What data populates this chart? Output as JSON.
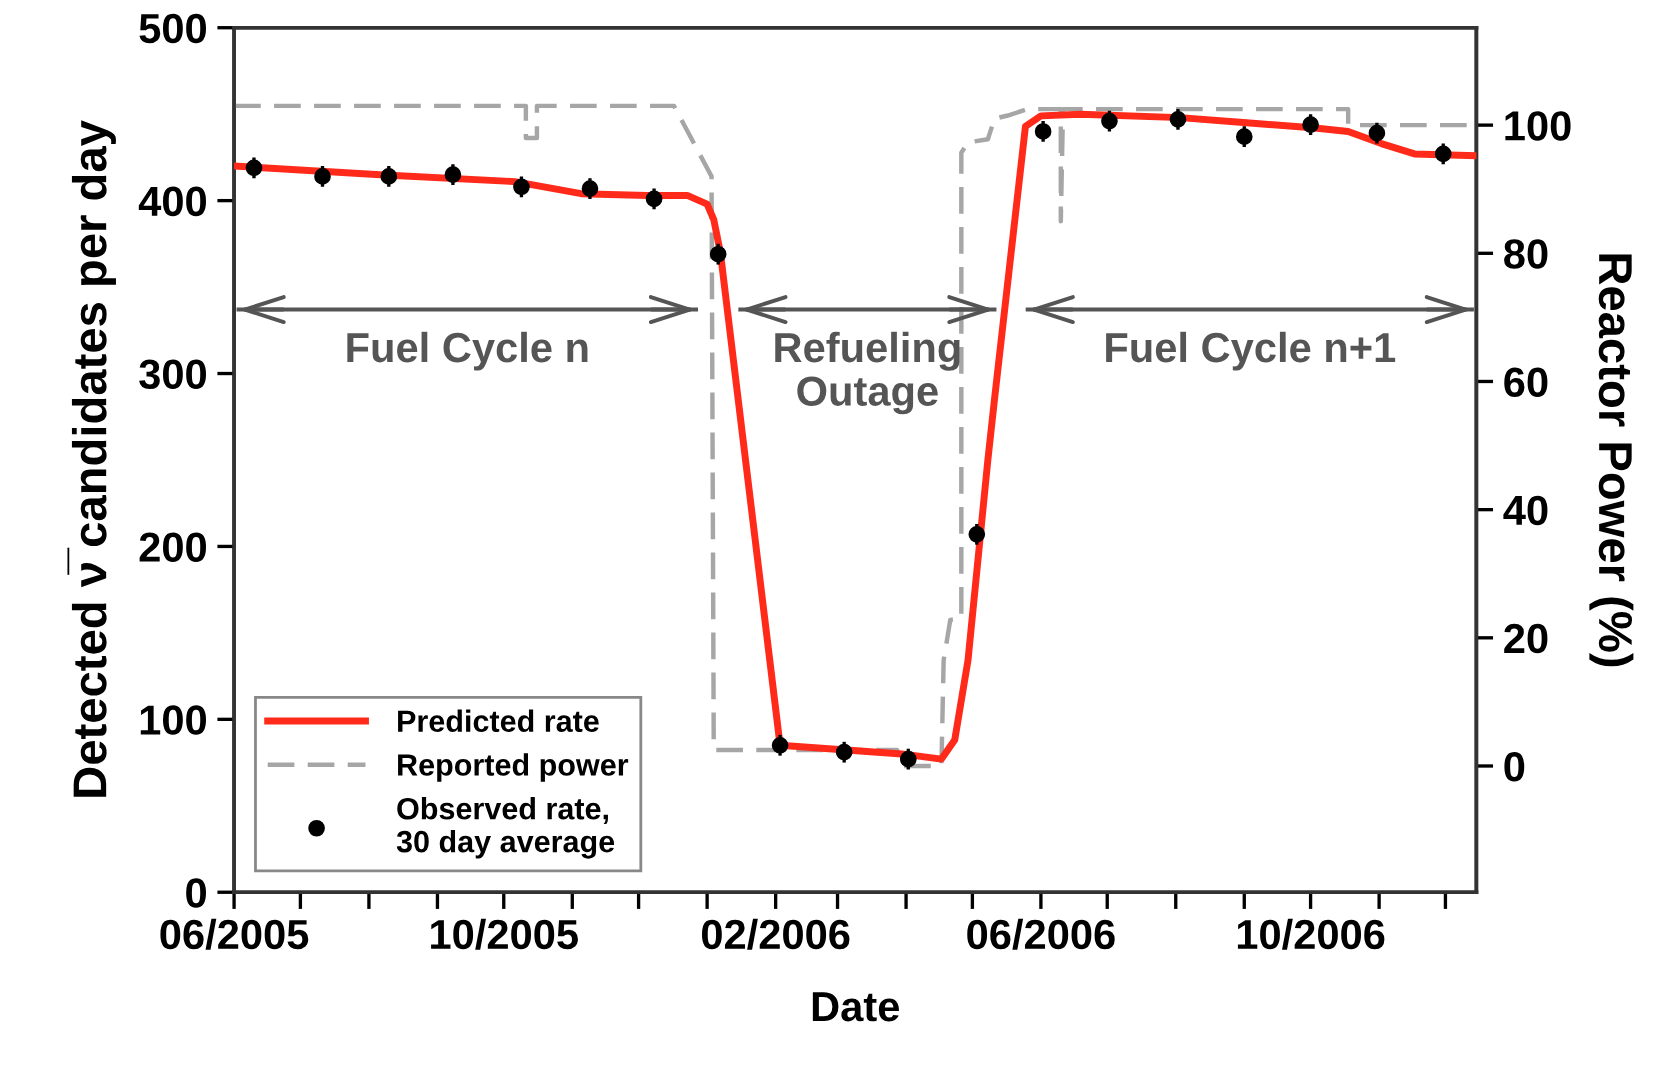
{
  "chart_data": {
    "type": "line",
    "xlabel": "Date",
    "ylabel": "Detected ν̅ candidates per day",
    "y2label": "Reactor Power (%)",
    "xlim": [
      "2005-06-01",
      "2006-12-15"
    ],
    "xticks": [
      {
        "value": "2005-06-01",
        "label": "06/2005"
      },
      {
        "value": "2005-07-01",
        "label": null
      },
      {
        "value": "2005-08-01",
        "label": null
      },
      {
        "value": "2005-09-01",
        "label": null
      },
      {
        "value": "2005-10-01",
        "label": "10/2005"
      },
      {
        "value": "2005-11-01",
        "label": null
      },
      {
        "value": "2005-12-01",
        "label": null
      },
      {
        "value": "2006-01-01",
        "label": null
      },
      {
        "value": "2006-02-01",
        "label": "02/2006"
      },
      {
        "value": "2006-03-01",
        "label": null
      },
      {
        "value": "2006-04-01",
        "label": null
      },
      {
        "value": "2006-05-01",
        "label": null
      },
      {
        "value": "2006-06-01",
        "label": "06/2006"
      },
      {
        "value": "2006-07-01",
        "label": null
      },
      {
        "value": "2006-08-01",
        "label": null
      },
      {
        "value": "2006-09-01",
        "label": null
      },
      {
        "value": "2006-10-01",
        "label": "10/2006"
      },
      {
        "value": "2006-11-01",
        "label": null
      },
      {
        "value": "2006-12-01",
        "label": null
      }
    ],
    "ylim": [
      0,
      500
    ],
    "yticks": [
      0,
      100,
      200,
      300,
      400,
      500
    ],
    "y2lim": [
      -19.7,
      115.2
    ],
    "y2ticks": [
      0,
      20,
      40,
      60,
      80,
      100
    ],
    "legend": "bottom left",
    "series": [
      {
        "name": "Reported power",
        "axis": "y2",
        "color": "#a6a6a6",
        "line_style": "dashed",
        "x": [
          "2005-06-01",
          "2005-10-11",
          "2005-10-11",
          "2005-10-16",
          "2005-10-16",
          "2005-12-17",
          "2006-01-03",
          "2006-01-04",
          "2006-03-28",
          "2006-03-30",
          "2006-04-17",
          "2006-04-18",
          "2006-04-21",
          "2006-04-26",
          "2006-04-26",
          "2006-04-29",
          "2006-05-08",
          "2006-05-11",
          "2006-05-17",
          "2006-05-26",
          "2006-06-10",
          "2006-06-10",
          "2006-06-11",
          "2006-10-18",
          "2006-10-18",
          "2006-12-15"
        ],
        "values": [
          103,
          103,
          98,
          98,
          103,
          103,
          92,
          2.5,
          2.5,
          0,
          0,
          16.5,
          22.8,
          23,
          95.7,
          97.3,
          97.8,
          101,
          101.5,
          102.5,
          102.5,
          85,
          102.5,
          102.5,
          100,
          100
        ]
      },
      {
        "name": "Predicted rate",
        "color": "#ff2a1a",
        "line_style": "solid",
        "x": [
          "2005-06-01",
          "2005-08-06",
          "2005-10-06",
          "2005-11-05",
          "2005-12-05",
          "2005-12-23",
          "2006-01-01",
          "2006-01-04",
          "2006-01-07",
          "2006-02-03",
          "2006-03-30",
          "2006-04-17",
          "2006-04-23",
          "2006-04-29",
          "2006-05-08",
          "2006-05-11",
          "2006-05-25",
          "2006-06-01",
          "2006-06-19",
          "2006-08-03",
          "2006-09-02",
          "2006-10-03",
          "2006-10-18",
          "2006-11-02",
          "2006-11-17",
          "2006-12-15"
        ],
        "values": [
          420,
          415,
          411,
          404,
          403,
          403,
          398,
          389,
          370,
          85,
          80,
          77,
          88,
          134,
          250,
          285,
          443,
          449,
          450,
          448,
          445,
          442,
          440,
          433,
          427,
          426
        ]
      },
      {
        "name": "Observed rate,\n30 day average",
        "type": "scatter",
        "marker": "circle",
        "color": "#000000",
        "x": [
          "2005-06-10",
          "2005-07-11",
          "2005-08-10",
          "2005-09-08",
          "2005-10-09",
          "2005-11-09",
          "2005-12-08",
          "2006-01-06",
          "2006-02-03",
          "2006-03-04",
          "2006-04-02",
          "2006-05-03",
          "2006-06-02",
          "2006-07-02",
          "2006-08-02",
          "2006-09-01",
          "2006-10-01",
          "2006-10-31",
          "2006-11-30"
        ],
        "values": [
          419,
          414,
          414,
          415,
          408,
          407,
          401,
          369,
          85,
          81,
          77,
          207,
          440,
          446,
          447,
          437,
          444,
          439,
          427
        ],
        "errors": [
          6,
          6,
          6,
          6,
          6,
          6,
          6,
          6,
          6,
          6,
          6,
          6,
          6,
          6,
          6,
          6,
          6,
          6,
          6
        ]
      },
      {
        "name": "Fuel Cycle n",
        "color": "#555555",
        "line_style": "solid",
        "x": [
          "2005-06-03",
          "2005-12-27"
        ],
        "values": [
          337,
          337
        ]
      },
      {
        "name": "Refueling\nOutage",
        "color": "#555555",
        "line_style": "solid",
        "x": [
          "2006-01-16",
          "2006-05-11"
        ],
        "values": [
          337,
          337
        ]
      },
      {
        "name": "Fuel Cycle n+1",
        "color": "#555555",
        "line_style": "solid",
        "x": [
          "2006-05-26",
          "2006-12-13"
        ],
        "values": [
          337,
          337
        ]
      }
    ]
  }
}
